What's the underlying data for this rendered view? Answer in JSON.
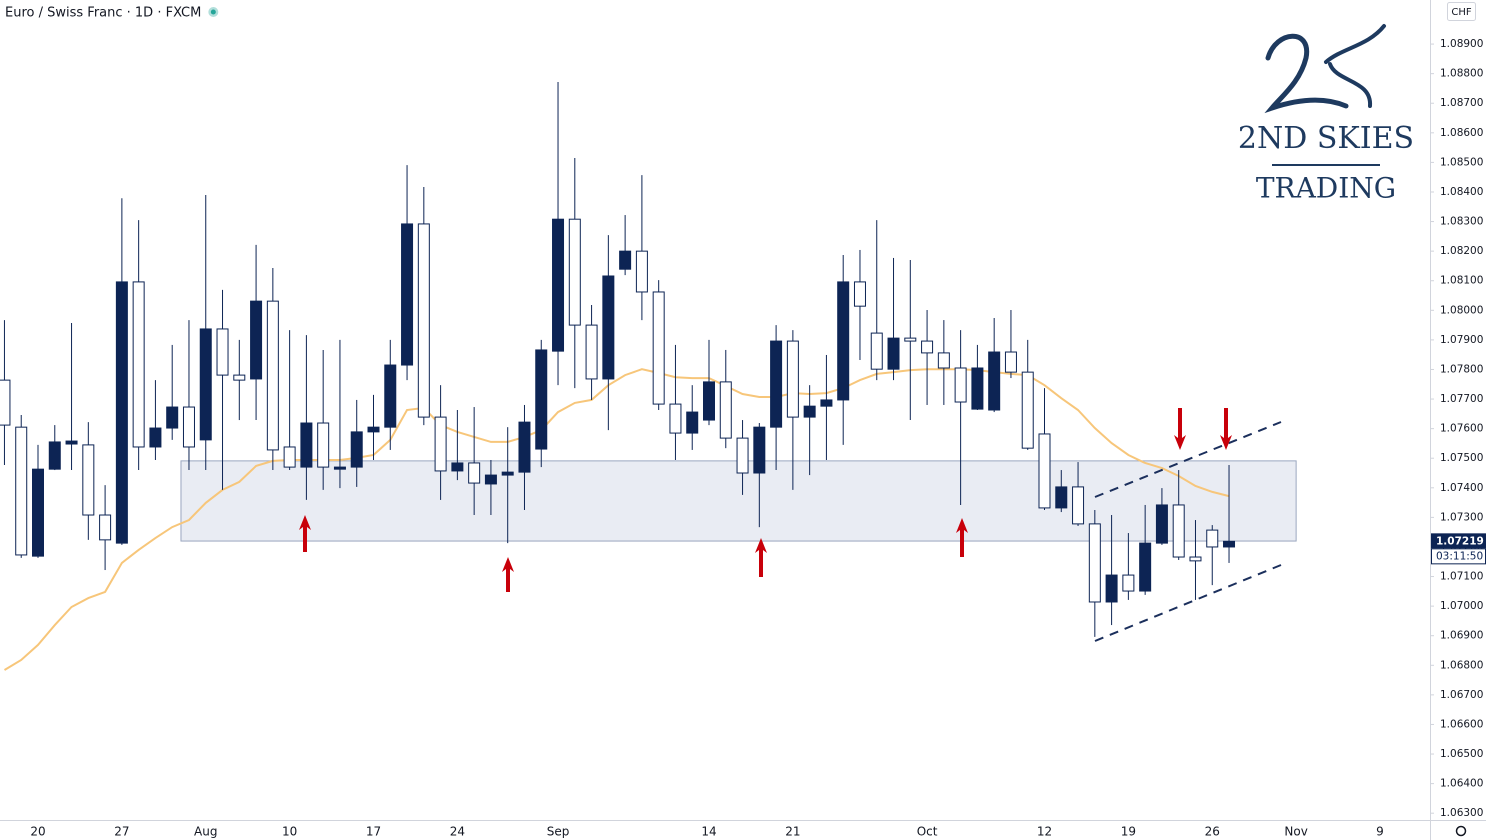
{
  "chart_data": {
    "type": "candlestick",
    "title": "Euro / Swiss Franc · 1D · FXCM",
    "currency": "CHF",
    "countdown": "03:11:50",
    "price_label": {
      "value": 1.07219,
      "label": "1.07219"
    },
    "colors": {
      "up": "#0d2454",
      "down": "#ffffff",
      "wick": "#0d2454"
    },
    "categories": [
      null,
      null,
      "20",
      null,
      null,
      null,
      null,
      "27",
      null,
      null,
      null,
      null,
      "Aug",
      null,
      null,
      null,
      null,
      "10",
      null,
      null,
      null,
      null,
      "17",
      null,
      null,
      null,
      null,
      "24",
      null,
      null,
      null,
      null,
      null,
      "Sep",
      null,
      null,
      null,
      null,
      null,
      null,
      null,
      null,
      "14",
      null,
      null,
      null,
      null,
      "21",
      null,
      null,
      null,
      null,
      null,
      null,
      null,
      "Oct",
      null,
      null,
      null,
      null,
      null,
      null,
      "12",
      null,
      null,
      null,
      null,
      "19",
      null,
      null,
      null,
      null,
      "26",
      null,
      null,
      null,
      null,
      "Nov",
      null,
      null,
      null,
      null,
      "9",
      null,
      null
    ],
    "open": [
      1.07764,
      1.07605,
      1.07169,
      1.07463,
      1.07548,
      1.07545,
      1.07308,
      1.07213,
      1.08096,
      1.07538,
      1.07602,
      1.07673,
      1.07562,
      1.07937,
      1.07781,
      1.07768,
      1.08031,
      1.07538,
      1.0747,
      1.07619,
      1.07463,
      1.0747,
      1.07589,
      1.07605,
      1.07815,
      1.08292,
      1.07639,
      1.07457,
      1.07484,
      1.07413,
      1.07443,
      1.07453,
      1.07531,
      1.07862,
      1.08308,
      1.0795,
      1.07768,
      1.08139,
      1.082,
      1.08062,
      1.07683,
      1.07585,
      1.07629,
      1.07758,
      1.07568,
      1.0745,
      1.07605,
      1.07896,
      1.07639,
      1.07676,
      1.07697,
      1.08096,
      1.07923,
      1.07801,
      1.07906,
      1.07896,
      1.07856,
      1.07805,
      1.07666,
      1.07663,
      1.07859,
      1.07791,
      1.07582,
      1.07332,
      1.07403,
      1.07278,
      1.07014,
      1.07105,
      1.07051,
      1.07213,
      1.07342,
      1.07166,
      1.07257,
      1.072,
      null,
      null,
      null,
      null,
      null,
      null,
      null,
      null,
      null,
      null,
      null
    ],
    "high": [
      1.07967,
      1.07646,
      1.07545,
      1.07612,
      1.07957,
      1.07622,
      1.07409,
      1.08379,
      1.08305,
      1.07764,
      1.07883,
      1.07967,
      1.0839,
      1.08069,
      1.079,
      1.08221,
      1.08143,
      1.07933,
      1.07916,
      1.07866,
      1.079,
      1.07697,
      1.07714,
      1.079,
      1.08491,
      1.08417,
      1.07747,
      1.07663,
      1.07673,
      1.07494,
      1.07605,
      1.0768,
      1.079,
      1.08772,
      1.08515,
      1.08018,
      1.08254,
      1.08322,
      1.08457,
      1.08102,
      1.07883,
      1.07747,
      1.079,
      1.07866,
      1.07629,
      1.07619,
      1.0795,
      1.07933,
      1.07747,
      1.07849,
      1.08187,
      1.08204,
      1.08305,
      1.08177,
      1.0817,
      1.08001,
      1.07967,
      1.07933,
      1.07883,
      1.07974,
      1.08001,
      1.079,
      1.07737,
      1.0746,
      1.07487,
      1.07325,
      1.07308,
      1.07247,
      1.07342,
      1.07399,
      1.0746,
      1.07291,
      1.07274,
      1.07477,
      null,
      null,
      null,
      null,
      null,
      null,
      null,
      null,
      null,
      null,
      null
    ],
    "low": [
      1.07477,
      1.07163,
      1.07163,
      1.0746,
      1.0746,
      1.07224,
      1.07122,
      1.07207,
      1.0746,
      1.07494,
      1.07562,
      1.0746,
      1.0746,
      1.07393,
      1.07629,
      1.07629,
      1.0746,
      1.0746,
      1.07359,
      1.07393,
      1.07399,
      1.07403,
      1.07494,
      1.07528,
      1.07764,
      1.07612,
      1.07359,
      1.07426,
      1.07308,
      1.07308,
      1.07213,
      1.07325,
      1.0747,
      1.07747,
      1.07737,
      1.07697,
      1.07595,
      1.08119,
      1.07967,
      1.07663,
      1.07494,
      1.07528,
      1.07612,
      1.07534,
      1.07376,
      1.07267,
      1.0746,
      1.07393,
      1.07443,
      1.07494,
      1.07545,
      1.07832,
      1.07764,
      1.07764,
      1.07629,
      1.0768,
      1.0768,
      1.07342,
      1.07663,
      1.07656,
      1.07771,
      1.07528,
      1.07325,
      1.07318,
      1.07271,
      1.06896,
      1.06936,
      1.07021,
      1.07038,
      1.07207,
      1.07156,
      1.07021,
      1.07071,
      1.07146,
      null,
      null,
      null,
      null,
      null,
      null,
      null,
      null,
      null,
      null,
      null
    ],
    "close": [
      1.07612,
      1.07173,
      1.07463,
      1.07555,
      1.07558,
      1.07308,
      1.07224,
      1.08096,
      1.07538,
      1.07602,
      1.07673,
      1.07538,
      1.07937,
      1.07781,
      1.07764,
      1.08031,
      1.07528,
      1.0747,
      1.07619,
      1.0747,
      1.0747,
      1.07589,
      1.07605,
      1.07815,
      1.08292,
      1.07639,
      1.07457,
      1.07484,
      1.07416,
      1.07443,
      1.07453,
      1.07622,
      1.07866,
      1.08308,
      1.0795,
      1.07768,
      1.08116,
      1.082,
      1.08062,
      1.07683,
      1.07585,
      1.07656,
      1.07758,
      1.07568,
      1.0745,
      1.07605,
      1.07896,
      1.07639,
      1.07676,
      1.07697,
      1.08096,
      1.08014,
      1.07801,
      1.07906,
      1.07896,
      1.07856,
      1.07805,
      1.0769,
      1.07805,
      1.07859,
      1.07791,
      1.07534,
      1.07332,
      1.07403,
      1.07278,
      1.07014,
      1.07105,
      1.07051,
      1.07213,
      1.07342,
      1.07166,
      1.07153,
      1.072,
      1.07219,
      null,
      null,
      null,
      null,
      null,
      null,
      null,
      null,
      null,
      null,
      null
    ],
    "moving_average": {
      "color": "#f7c67a",
      "values": [
        1.06784,
        1.06818,
        1.06869,
        1.06936,
        1.06997,
        1.07027,
        1.07048,
        1.07146,
        1.0719,
        1.0723,
        1.07267,
        1.07291,
        1.07349,
        1.07393,
        1.0742,
        1.07474,
        1.07491,
        1.07494,
        1.07494,
        1.07494,
        1.07494,
        1.07501,
        1.07511,
        1.07562,
        1.07663,
        1.0767,
        1.07612,
        1.07589,
        1.07572,
        1.07555,
        1.07555,
        1.07572,
        1.07595,
        1.07656,
        1.07687,
        1.07697,
        1.07747,
        1.07781,
        1.07801,
        1.07788,
        1.07774,
        1.07771,
        1.07771,
        1.07744,
        1.07717,
        1.07707,
        1.07707,
        1.0772,
        1.07717,
        1.0772,
        1.07737,
        1.07764,
        1.07785,
        1.07791,
        1.07798,
        1.07801,
        1.07801,
        1.07801,
        1.07798,
        1.07791,
        1.07785,
        1.07781,
        1.07747,
        1.07703,
        1.07663,
        1.07602,
        1.07551,
        1.07511,
        1.07484,
        1.07467,
        1.0744,
        1.07406,
        1.07386,
        1.07372,
        null,
        null,
        null,
        null,
        null,
        null,
        null,
        null,
        null,
        null,
        null
      ]
    },
    "zone": {
      "top": 1.07491,
      "bottom": 1.0722,
      "color": "#e9ecf3",
      "border": "#9aa6bf"
    },
    "ylim": [
      1.06277,
      1.09049
    ],
    "yticks": [
      {
        "value": 1.063,
        "label": "1.06300"
      },
      {
        "value": 1.064,
        "label": "1.06400"
      },
      {
        "value": 1.065,
        "label": "1.06500"
      },
      {
        "value": 1.066,
        "label": "1.06600"
      },
      {
        "value": 1.067,
        "label": "1.06700"
      },
      {
        "value": 1.068,
        "label": "1.06800"
      },
      {
        "value": 1.069,
        "label": "1.06900"
      },
      {
        "value": 1.07,
        "label": "1.07000"
      },
      {
        "value": 1.071,
        "label": "1.07100"
      },
      {
        "value": 1.072,
        "label": "1.07200"
      },
      {
        "value": 1.073,
        "label": "1.07300"
      },
      {
        "value": 1.074,
        "label": "1.07400"
      },
      {
        "value": 1.075,
        "label": "1.07500"
      },
      {
        "value": 1.076,
        "label": "1.07600"
      },
      {
        "value": 1.077,
        "label": "1.07700"
      },
      {
        "value": 1.078,
        "label": "1.07800"
      },
      {
        "value": 1.079,
        "label": "1.07900"
      },
      {
        "value": 1.08,
        "label": "1.08000"
      },
      {
        "value": 1.081,
        "label": "1.08100"
      },
      {
        "value": 1.082,
        "label": "1.08200"
      },
      {
        "value": 1.083,
        "label": "1.08300"
      },
      {
        "value": 1.084,
        "label": "1.08400"
      },
      {
        "value": 1.085,
        "label": "1.08500"
      },
      {
        "value": 1.086,
        "label": "1.08600"
      },
      {
        "value": 1.087,
        "label": "1.08700"
      },
      {
        "value": 1.088,
        "label": "1.08800"
      },
      {
        "value": 1.089,
        "label": "1.08900"
      }
    ],
    "grid": false
  },
  "logo": {
    "line1": "2ND SKIES",
    "line2": "TRADING"
  }
}
